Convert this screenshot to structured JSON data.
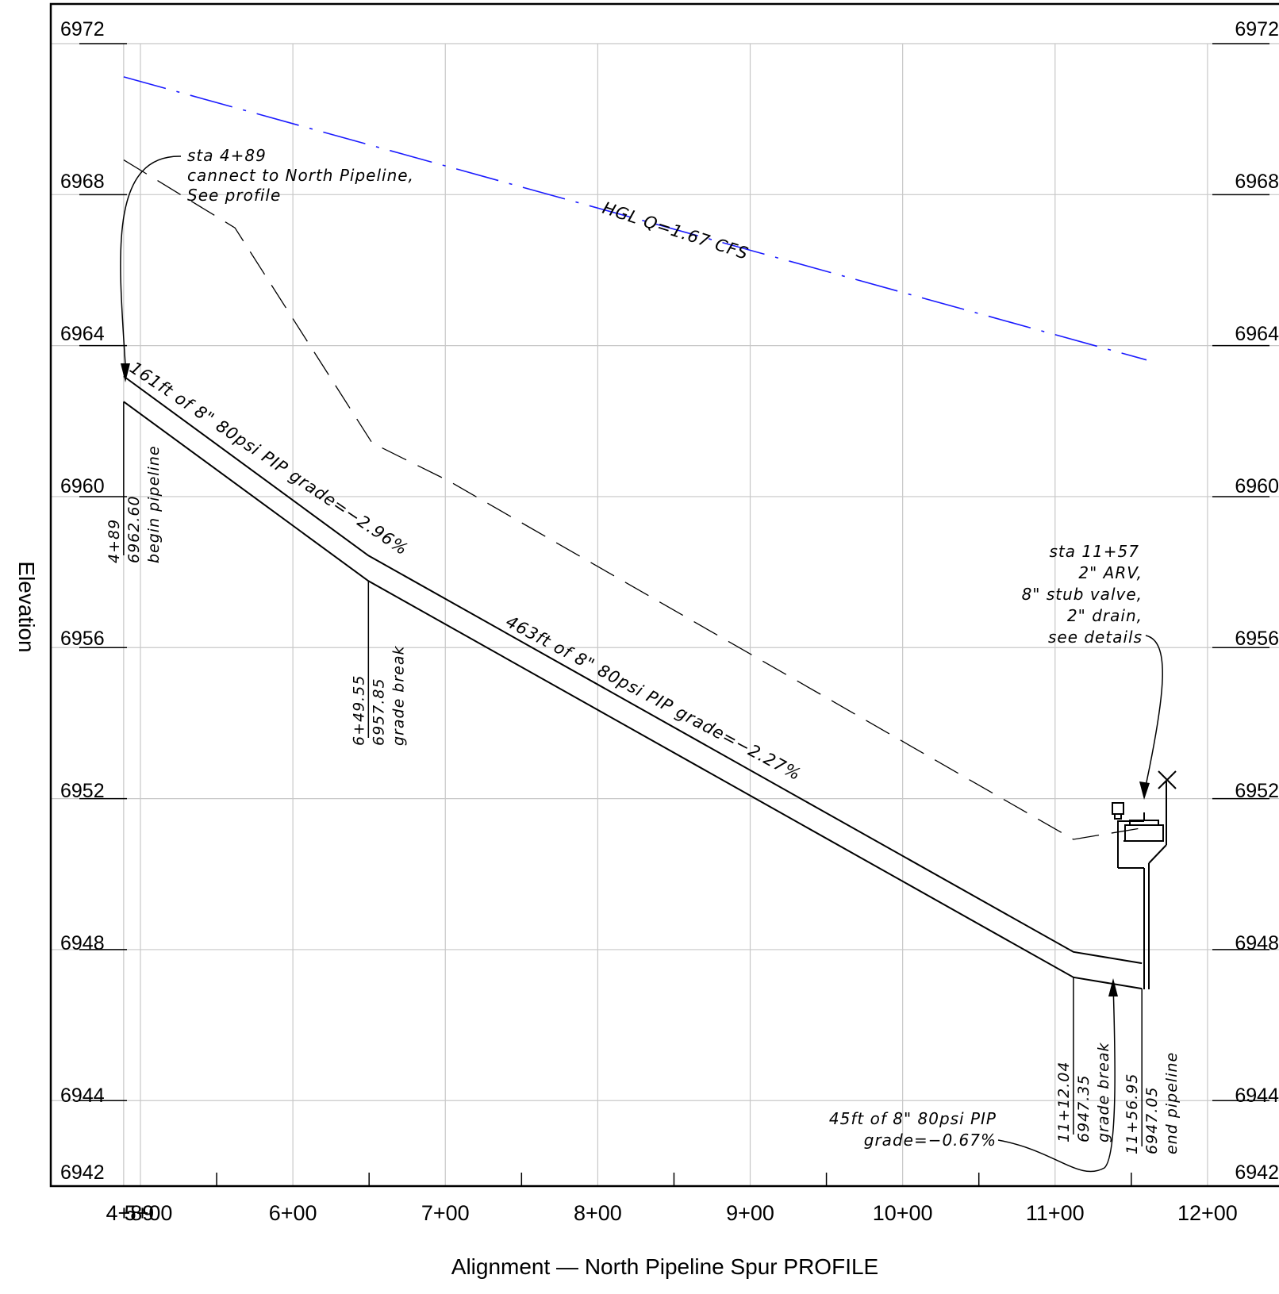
{
  "drawing": {
    "x_axis_title": "Alignment — North Pipeline Spur PROFILE",
    "y_axis_title": "Elevation",
    "y_ticks": [
      "6972",
      "6968",
      "6964",
      "6960",
      "6956",
      "6952",
      "6948",
      "6944",
      "6942"
    ],
    "x_ticks": [
      "4+89",
      "5+00",
      "6+00",
      "7+00",
      "8+00",
      "9+00",
      "10+00",
      "11+00",
      "12+00"
    ],
    "hgl_label": "HGL Q=1.67 CFS",
    "callout_start": [
      "sta 4+89",
      "cannect to North Pipeline,",
      "See profile"
    ],
    "callout_end": [
      "sta 11+57",
      "2\" ARV,",
      "8\" stub valve,",
      "2\" drain,",
      "see details"
    ],
    "callout_last_segment": [
      "45ft of 8\" 80psi PIP",
      "grade=−0.67%"
    ],
    "segment_labels": [
      "161ft of 8\" 80psi PIP grade=−2.96%",
      "463ft of 8\" 80psi PIP grade=−2.27%"
    ],
    "vertical_labels": [
      {
        "station": "4+89",
        "elevation": "6962.60",
        "note": "begin pipeline"
      },
      {
        "station": "6+49.55",
        "elevation": "6957.85",
        "note": "grade break"
      },
      {
        "station": "11+12.04",
        "elevation": "6947.35",
        "note": "grade break"
      },
      {
        "station": "11+56.95",
        "elevation": "6947.05",
        "note": "end pipeline"
      }
    ],
    "colors": {
      "hgl": "#1a1aff",
      "grid": "#c8c8c8",
      "ink": "#000000"
    }
  },
  "chart_data": {
    "type": "line",
    "x_unit": "station (ft)",
    "y_unit": "elevation (ft)",
    "xlim": [
      489,
      1200
    ],
    "ylim": [
      6942,
      6972.5
    ],
    "series": [
      {
        "name": "HGL Q=1.67 CFS",
        "x": [
          489,
          1160
        ],
        "y": [
          6970.7,
          6963.2
        ]
      },
      {
        "x": [
          489,
          562,
          652,
          702,
          1112,
          1157
        ],
        "y": [
          6968.5,
          6966.7,
          6961.0,
          6960.0,
          6950.5,
          6950.8
        ]
      },
      {
        "x": [
          489,
          649.55,
          1112.04,
          1156.95
        ],
        "y": [
          6962.6,
          6957.85,
          6947.35,
          6947.05
        ]
      }
    ],
    "grade_breaks": [
      {
        "station": "4+89",
        "elevation": 6962.6
      },
      {
        "station": "6+49.55",
        "elevation": 6957.85
      },
      {
        "station": "11+12.04",
        "elevation": 6947.35
      },
      {
        "station": "11+56.95",
        "elevation": 6947.05
      }
    ],
    "grid": true
  }
}
